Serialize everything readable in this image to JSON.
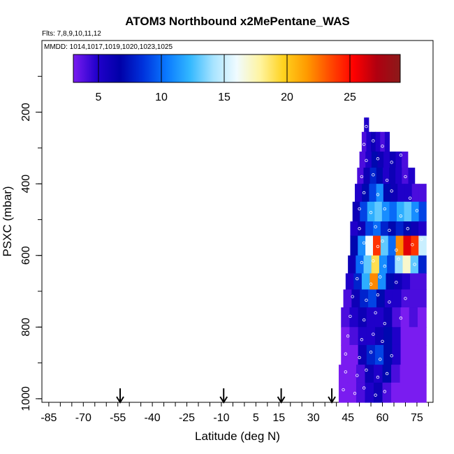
{
  "chart_data": {
    "type": "heatmap",
    "title": "ATOM3 Northbound x2MePentane_WAS",
    "subtitle_flights": "Flts: 7,8,9,10,11,12",
    "subtitle_dates": "MMDD: 1014,1017,1019,1020,1023,1025",
    "xlabel": "Latitude (deg N)",
    "ylabel": "PSXC (mbar)",
    "xlim": [
      -88,
      82
    ],
    "ylim": [
      1010,
      0
    ],
    "xticks": [
      -85,
      -70,
      -55,
      -40,
      -25,
      -10,
      5,
      15,
      30,
      45,
      60,
      75
    ],
    "xtick_labels": [
      "-85",
      "-70",
      "-55",
      "-40",
      "-25",
      "-10",
      "5",
      "15",
      "30",
      "45",
      "60",
      "75"
    ],
    "yticks": [
      200,
      400,
      600,
      800,
      1000
    ],
    "ytick_labels": [
      "200",
      "400",
      "600",
      "800",
      "1000"
    ],
    "colorbar": {
      "range": [
        3,
        29
      ],
      "ticks": [
        5,
        10,
        15,
        20,
        25
      ],
      "tick_labels": [
        "5",
        "10",
        "15",
        "20",
        "25"
      ],
      "colors": [
        "#7a1cf0",
        "#2200cc",
        "#0000a8",
        "#0033dd",
        "#0a7aff",
        "#33b8ff",
        "#a8e4ff",
        "#f0fbff",
        "#fff4a0",
        "#ffd21e",
        "#ff9a00",
        "#ff4a00",
        "#ff0000",
        "#b00010",
        "#8b1a1a"
      ]
    },
    "arrows_latitude": [
      -54,
      -9,
      16,
      38
    ],
    "profile_layers": [
      {
        "p_top": 215,
        "p_bot": 255,
        "lat_min": 52,
        "lat_max": 54,
        "cells": [
          5,
          5
        ]
      },
      {
        "p_top": 255,
        "p_bot": 310,
        "lat_min": 51,
        "lat_max": 63,
        "cells": [
          4,
          5,
          6,
          5,
          4,
          5
        ]
      },
      {
        "p_top": 310,
        "p_bot": 355,
        "lat_min": 50,
        "lat_max": 71,
        "cells": [
          4,
          5,
          7,
          6,
          5,
          6,
          5,
          4
        ]
      },
      {
        "p_top": 355,
        "p_bot": 400,
        "lat_min": 49,
        "lat_max": 74,
        "cells": [
          4,
          6,
          8,
          7,
          5,
          6,
          5,
          4,
          5
        ]
      },
      {
        "p_top": 400,
        "p_bot": 450,
        "lat_min": 48,
        "lat_max": 79,
        "cells": [
          5,
          7,
          9,
          11,
          7,
          6,
          5,
          5,
          4,
          4
        ]
      },
      {
        "p_top": 450,
        "p_bot": 505,
        "lat_min": 47,
        "lat_max": 79,
        "cells": [
          6,
          9,
          12,
          13,
          11,
          10,
          12,
          13,
          11,
          9
        ]
      },
      {
        "p_top": 505,
        "p_bot": 545,
        "lat_min": 46,
        "lat_max": 79,
        "cells": [
          5,
          6,
          9,
          10,
          8,
          7,
          8,
          7,
          6,
          5
        ]
      },
      {
        "p_top": 545,
        "p_bot": 600,
        "lat_min": 46,
        "lat_max": 79,
        "cells": [
          7,
          11,
          16,
          24,
          13,
          10,
          22,
          26,
          24,
          15
        ]
      },
      {
        "p_top": 600,
        "p_bot": 650,
        "lat_min": 45,
        "lat_max": 79,
        "cells": [
          6,
          10,
          13,
          19,
          11,
          9,
          14,
          17,
          13,
          8
        ]
      },
      {
        "p_top": 650,
        "p_bot": 695,
        "lat_min": 44,
        "lat_max": 79,
        "cells": [
          5,
          8,
          12,
          22,
          11,
          7,
          6,
          5,
          4,
          4
        ]
      },
      {
        "p_top": 695,
        "p_bot": 745,
        "lat_min": 43,
        "lat_max": 79,
        "cells": [
          4,
          6,
          8,
          9,
          7,
          5,
          5,
          4,
          4,
          4
        ]
      },
      {
        "p_top": 745,
        "p_bot": 800,
        "lat_min": 42,
        "lat_max": 79,
        "cells": [
          4,
          5,
          6,
          5,
          5,
          6,
          4,
          3,
          4,
          3
        ]
      },
      {
        "p_top": 800,
        "p_bot": 850,
        "lat_min": 42,
        "lat_max": 79,
        "cells": [
          3,
          4,
          5,
          5,
          6,
          7,
          5,
          3,
          3,
          3
        ]
      },
      {
        "p_top": 850,
        "p_bot": 905,
        "lat_min": 42,
        "lat_max": 79,
        "cells": [
          3,
          3,
          6,
          8,
          9,
          7,
          5,
          3,
          3,
          3
        ]
      },
      {
        "p_top": 905,
        "p_bot": 955,
        "lat_min": 41,
        "lat_max": 79,
        "cells": [
          3,
          3,
          4,
          6,
          5,
          7,
          4,
          3,
          3,
          3
        ]
      },
      {
        "p_top": 955,
        "p_bot": 1010,
        "lat_min": 41,
        "lat_max": 79,
        "cells": [
          3,
          3,
          4,
          5,
          6,
          4,
          3,
          3,
          3,
          3
        ]
      }
    ],
    "samples": [
      {
        "lat": 53,
        "p": 240
      },
      {
        "lat": 52,
        "p": 290
      },
      {
        "lat": 56,
        "p": 280
      },
      {
        "lat": 60,
        "p": 295
      },
      {
        "lat": 53,
        "p": 335
      },
      {
        "lat": 58,
        "p": 330
      },
      {
        "lat": 64,
        "p": 340
      },
      {
        "lat": 68,
        "p": 320
      },
      {
        "lat": 51,
        "p": 380
      },
      {
        "lat": 56,
        "p": 375
      },
      {
        "lat": 62,
        "p": 390
      },
      {
        "lat": 70,
        "p": 380
      },
      {
        "lat": 52,
        "p": 425
      },
      {
        "lat": 58,
        "p": 430
      },
      {
        "lat": 64,
        "p": 420
      },
      {
        "lat": 72,
        "p": 440
      },
      {
        "lat": 50,
        "p": 470
      },
      {
        "lat": 55,
        "p": 480
      },
      {
        "lat": 61,
        "p": 470
      },
      {
        "lat": 68,
        "p": 490
      },
      {
        "lat": 75,
        "p": 475
      },
      {
        "lat": 50,
        "p": 525
      },
      {
        "lat": 57,
        "p": 520
      },
      {
        "lat": 63,
        "p": 530
      },
      {
        "lat": 71,
        "p": 525
      },
      {
        "lat": 52,
        "p": 565
      },
      {
        "lat": 58,
        "p": 575
      },
      {
        "lat": 60,
        "p": 560
      },
      {
        "lat": 66,
        "p": 585
      },
      {
        "lat": 73,
        "p": 570
      },
      {
        "lat": 77,
        "p": 555
      },
      {
        "lat": 51,
        "p": 620
      },
      {
        "lat": 56,
        "p": 615
      },
      {
        "lat": 61,
        "p": 630
      },
      {
        "lat": 67,
        "p": 610
      },
      {
        "lat": 74,
        "p": 625
      },
      {
        "lat": 49,
        "p": 665
      },
      {
        "lat": 55,
        "p": 680
      },
      {
        "lat": 59,
        "p": 660
      },
      {
        "lat": 66,
        "p": 675
      },
      {
        "lat": 47,
        "p": 715
      },
      {
        "lat": 53,
        "p": 725
      },
      {
        "lat": 58,
        "p": 710
      },
      {
        "lat": 63,
        "p": 730
      },
      {
        "lat": 70,
        "p": 720
      },
      {
        "lat": 46,
        "p": 770
      },
      {
        "lat": 52,
        "p": 780
      },
      {
        "lat": 57,
        "p": 760
      },
      {
        "lat": 61,
        "p": 790
      },
      {
        "lat": 68,
        "p": 775
      },
      {
        "lat": 45,
        "p": 825
      },
      {
        "lat": 51,
        "p": 835
      },
      {
        "lat": 56,
        "p": 820
      },
      {
        "lat": 60,
        "p": 840
      },
      {
        "lat": 44,
        "p": 875
      },
      {
        "lat": 50,
        "p": 885
      },
      {
        "lat": 55,
        "p": 870
      },
      {
        "lat": 59,
        "p": 890
      },
      {
        "lat": 64,
        "p": 880
      },
      {
        "lat": 44,
        "p": 925
      },
      {
        "lat": 49,
        "p": 935
      },
      {
        "lat": 53,
        "p": 920
      },
      {
        "lat": 58,
        "p": 940
      },
      {
        "lat": 62,
        "p": 930
      },
      {
        "lat": 43,
        "p": 975
      },
      {
        "lat": 48,
        "p": 985
      },
      {
        "lat": 52,
        "p": 970
      },
      {
        "lat": 57,
        "p": 990
      },
      {
        "lat": 61,
        "p": 980
      }
    ]
  }
}
